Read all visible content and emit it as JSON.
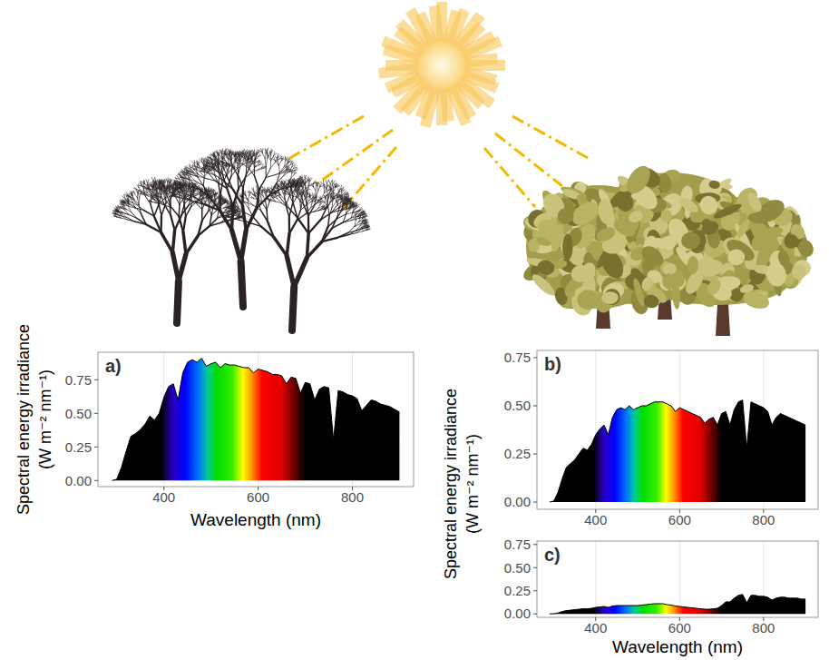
{
  "chart_data": [
    {
      "type": "area",
      "title": "a)",
      "x_label": "Wavelength (nm)",
      "y_label": "Spectral energy irradiance (W m⁻² nm⁻¹)",
      "color": "black",
      "grid": true,
      "xlim": [
        260,
        930
      ],
      "xticks": [
        400,
        600,
        800
      ],
      "ylim": [
        -0.045,
        0.955
      ],
      "yticks": [
        {
          "value": 0,
          "label": "0.00"
        },
        {
          "value": 0.25,
          "label": "0.25"
        },
        {
          "value": 0.5,
          "label": "0.50"
        },
        {
          "value": 0.75,
          "label": "0.75"
        }
      ],
      "x": [
        290,
        300,
        310,
        320,
        330,
        340,
        350,
        360,
        370,
        380,
        390,
        400,
        410,
        420,
        430,
        440,
        450,
        460,
        470,
        480,
        490,
        500,
        510,
        520,
        530,
        540,
        550,
        560,
        570,
        580,
        590,
        600,
        610,
        620,
        630,
        640,
        650,
        660,
        670,
        680,
        690,
        700,
        710,
        720,
        730,
        740,
        750,
        760,
        770,
        780,
        790,
        800,
        810,
        820,
        830,
        840,
        850,
        860,
        870,
        880,
        890,
        900
      ],
      "values": [
        0,
        0.01,
        0.1,
        0.22,
        0.33,
        0.35,
        0.38,
        0.42,
        0.48,
        0.45,
        0.5,
        0.62,
        0.7,
        0.72,
        0.6,
        0.8,
        0.88,
        0.9,
        0.88,
        0.91,
        0.85,
        0.87,
        0.88,
        0.84,
        0.87,
        0.86,
        0.86,
        0.85,
        0.84,
        0.84,
        0.8,
        0.83,
        0.82,
        0.81,
        0.79,
        0.79,
        0.78,
        0.72,
        0.77,
        0.76,
        0.65,
        0.73,
        0.72,
        0.6,
        0.68,
        0.7,
        0.69,
        0.3,
        0.67,
        0.66,
        0.64,
        0.63,
        0.61,
        0.52,
        0.56,
        0.6,
        0.59,
        0.57,
        0.56,
        0.55,
        0.53,
        0.51
      ]
    },
    {
      "type": "area",
      "title": "b)",
      "y_label": "Spectral energy irradiance (W m⁻² nm⁻¹)",
      "color": "black",
      "grid": true,
      "xlim": [
        260,
        930
      ],
      "xticks": [
        400,
        600,
        800
      ],
      "ylim": [
        -0.0375,
        0.7875
      ],
      "yticks": [
        {
          "value": 0,
          "label": "0.00"
        },
        {
          "value": 0.25,
          "label": "0.25"
        },
        {
          "value": 0.5,
          "label": "0.50"
        },
        {
          "value": 0.75,
          "label": "0.75"
        }
      ],
      "x": [
        290,
        300,
        310,
        320,
        330,
        340,
        350,
        360,
        370,
        380,
        390,
        400,
        410,
        420,
        430,
        440,
        450,
        460,
        470,
        480,
        490,
        500,
        510,
        520,
        530,
        540,
        550,
        560,
        570,
        580,
        590,
        600,
        610,
        620,
        630,
        640,
        650,
        660,
        670,
        680,
        690,
        700,
        710,
        720,
        730,
        740,
        750,
        760,
        770,
        780,
        790,
        800,
        810,
        820,
        830,
        840,
        850,
        860,
        870,
        880,
        890,
        900
      ],
      "values": [
        0,
        0.005,
        0.05,
        0.12,
        0.18,
        0.2,
        0.22,
        0.25,
        0.28,
        0.27,
        0.3,
        0.35,
        0.38,
        0.4,
        0.35,
        0.44,
        0.48,
        0.49,
        0.48,
        0.5,
        0.48,
        0.49,
        0.5,
        0.5,
        0.51,
        0.52,
        0.52,
        0.52,
        0.51,
        0.5,
        0.47,
        0.49,
        0.48,
        0.47,
        0.46,
        0.45,
        0.44,
        0.41,
        0.43,
        0.44,
        0.4,
        0.46,
        0.47,
        0.4,
        0.48,
        0.52,
        0.53,
        0.28,
        0.52,
        0.51,
        0.5,
        0.49,
        0.47,
        0.4,
        0.44,
        0.46,
        0.45,
        0.44,
        0.43,
        0.42,
        0.41,
        0.4
      ]
    },
    {
      "type": "area",
      "title": "c)",
      "x_label": "Wavelength (nm)",
      "color": "black",
      "grid": true,
      "xlim": [
        260,
        930
      ],
      "xticks": [
        400,
        600,
        800
      ],
      "ylim": [
        -0.0375,
        0.7875
      ],
      "yticks": [
        {
          "value": 0,
          "label": "0.00"
        },
        {
          "value": 0.25,
          "label": "0.25"
        },
        {
          "value": 0.5,
          "label": "0.50"
        },
        {
          "value": 0.75,
          "label": "0.75"
        }
      ],
      "x": [
        290,
        300,
        310,
        320,
        330,
        340,
        350,
        360,
        370,
        380,
        390,
        400,
        410,
        420,
        430,
        440,
        450,
        460,
        470,
        480,
        490,
        500,
        510,
        520,
        530,
        540,
        550,
        560,
        570,
        580,
        590,
        600,
        610,
        620,
        630,
        640,
        650,
        660,
        670,
        680,
        690,
        700,
        710,
        720,
        730,
        740,
        750,
        760,
        770,
        780,
        790,
        800,
        810,
        820,
        830,
        840,
        850,
        860,
        870,
        880,
        890,
        900
      ],
      "values": [
        0,
        0.002,
        0.01,
        0.025,
        0.035,
        0.04,
        0.045,
        0.05,
        0.055,
        0.055,
        0.06,
        0.07,
        0.075,
        0.08,
        0.07,
        0.085,
        0.09,
        0.09,
        0.09,
        0.09,
        0.09,
        0.09,
        0.095,
        0.1,
        0.105,
        0.11,
        0.11,
        0.11,
        0.1,
        0.095,
        0.085,
        0.08,
        0.075,
        0.07,
        0.065,
        0.06,
        0.055,
        0.05,
        0.05,
        0.055,
        0.06,
        0.09,
        0.13,
        0.13,
        0.17,
        0.2,
        0.21,
        0.12,
        0.2,
        0.2,
        0.19,
        0.19,
        0.18,
        0.15,
        0.17,
        0.18,
        0.18,
        0.17,
        0.17,
        0.17,
        0.16,
        0.16
      ]
    }
  ]
}
